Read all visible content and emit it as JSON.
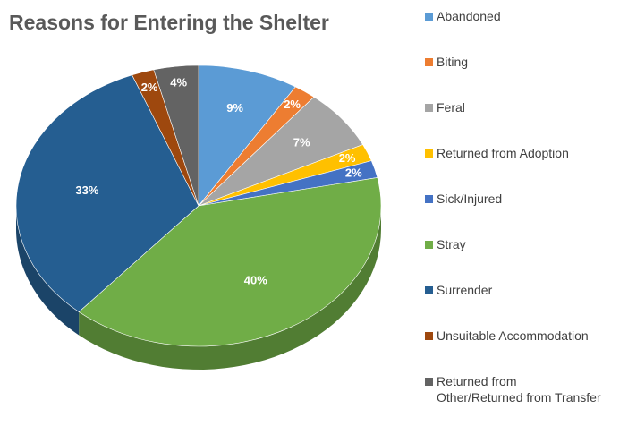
{
  "chart_data": {
    "type": "pie",
    "title": "Reasons for Entering the Shelter",
    "categories": [
      "Abandoned",
      "Biting",
      "Feral",
      "Returned from Adoption",
      "Sick/Injured",
      "Stray",
      "Surrender",
      "Unsuitable Accommodation",
      "Returned from\nOther/Returned from Transfer"
    ],
    "values": [
      9,
      2,
      7,
      2,
      2,
      40,
      33,
      2,
      4
    ],
    "data_labels": [
      "9%",
      "2%",
      "7%",
      "2%",
      "2%",
      "40%",
      "33%",
      "2%",
      "4%"
    ],
    "colors": [
      "#5B9BD5",
      "#ED7D31",
      "#A5A5A5",
      "#FFC000",
      "#4472C4",
      "#70AD47",
      "#255E91",
      "#9E480E",
      "#636363"
    ],
    "legend_position": "right",
    "style": "3d-pie"
  }
}
